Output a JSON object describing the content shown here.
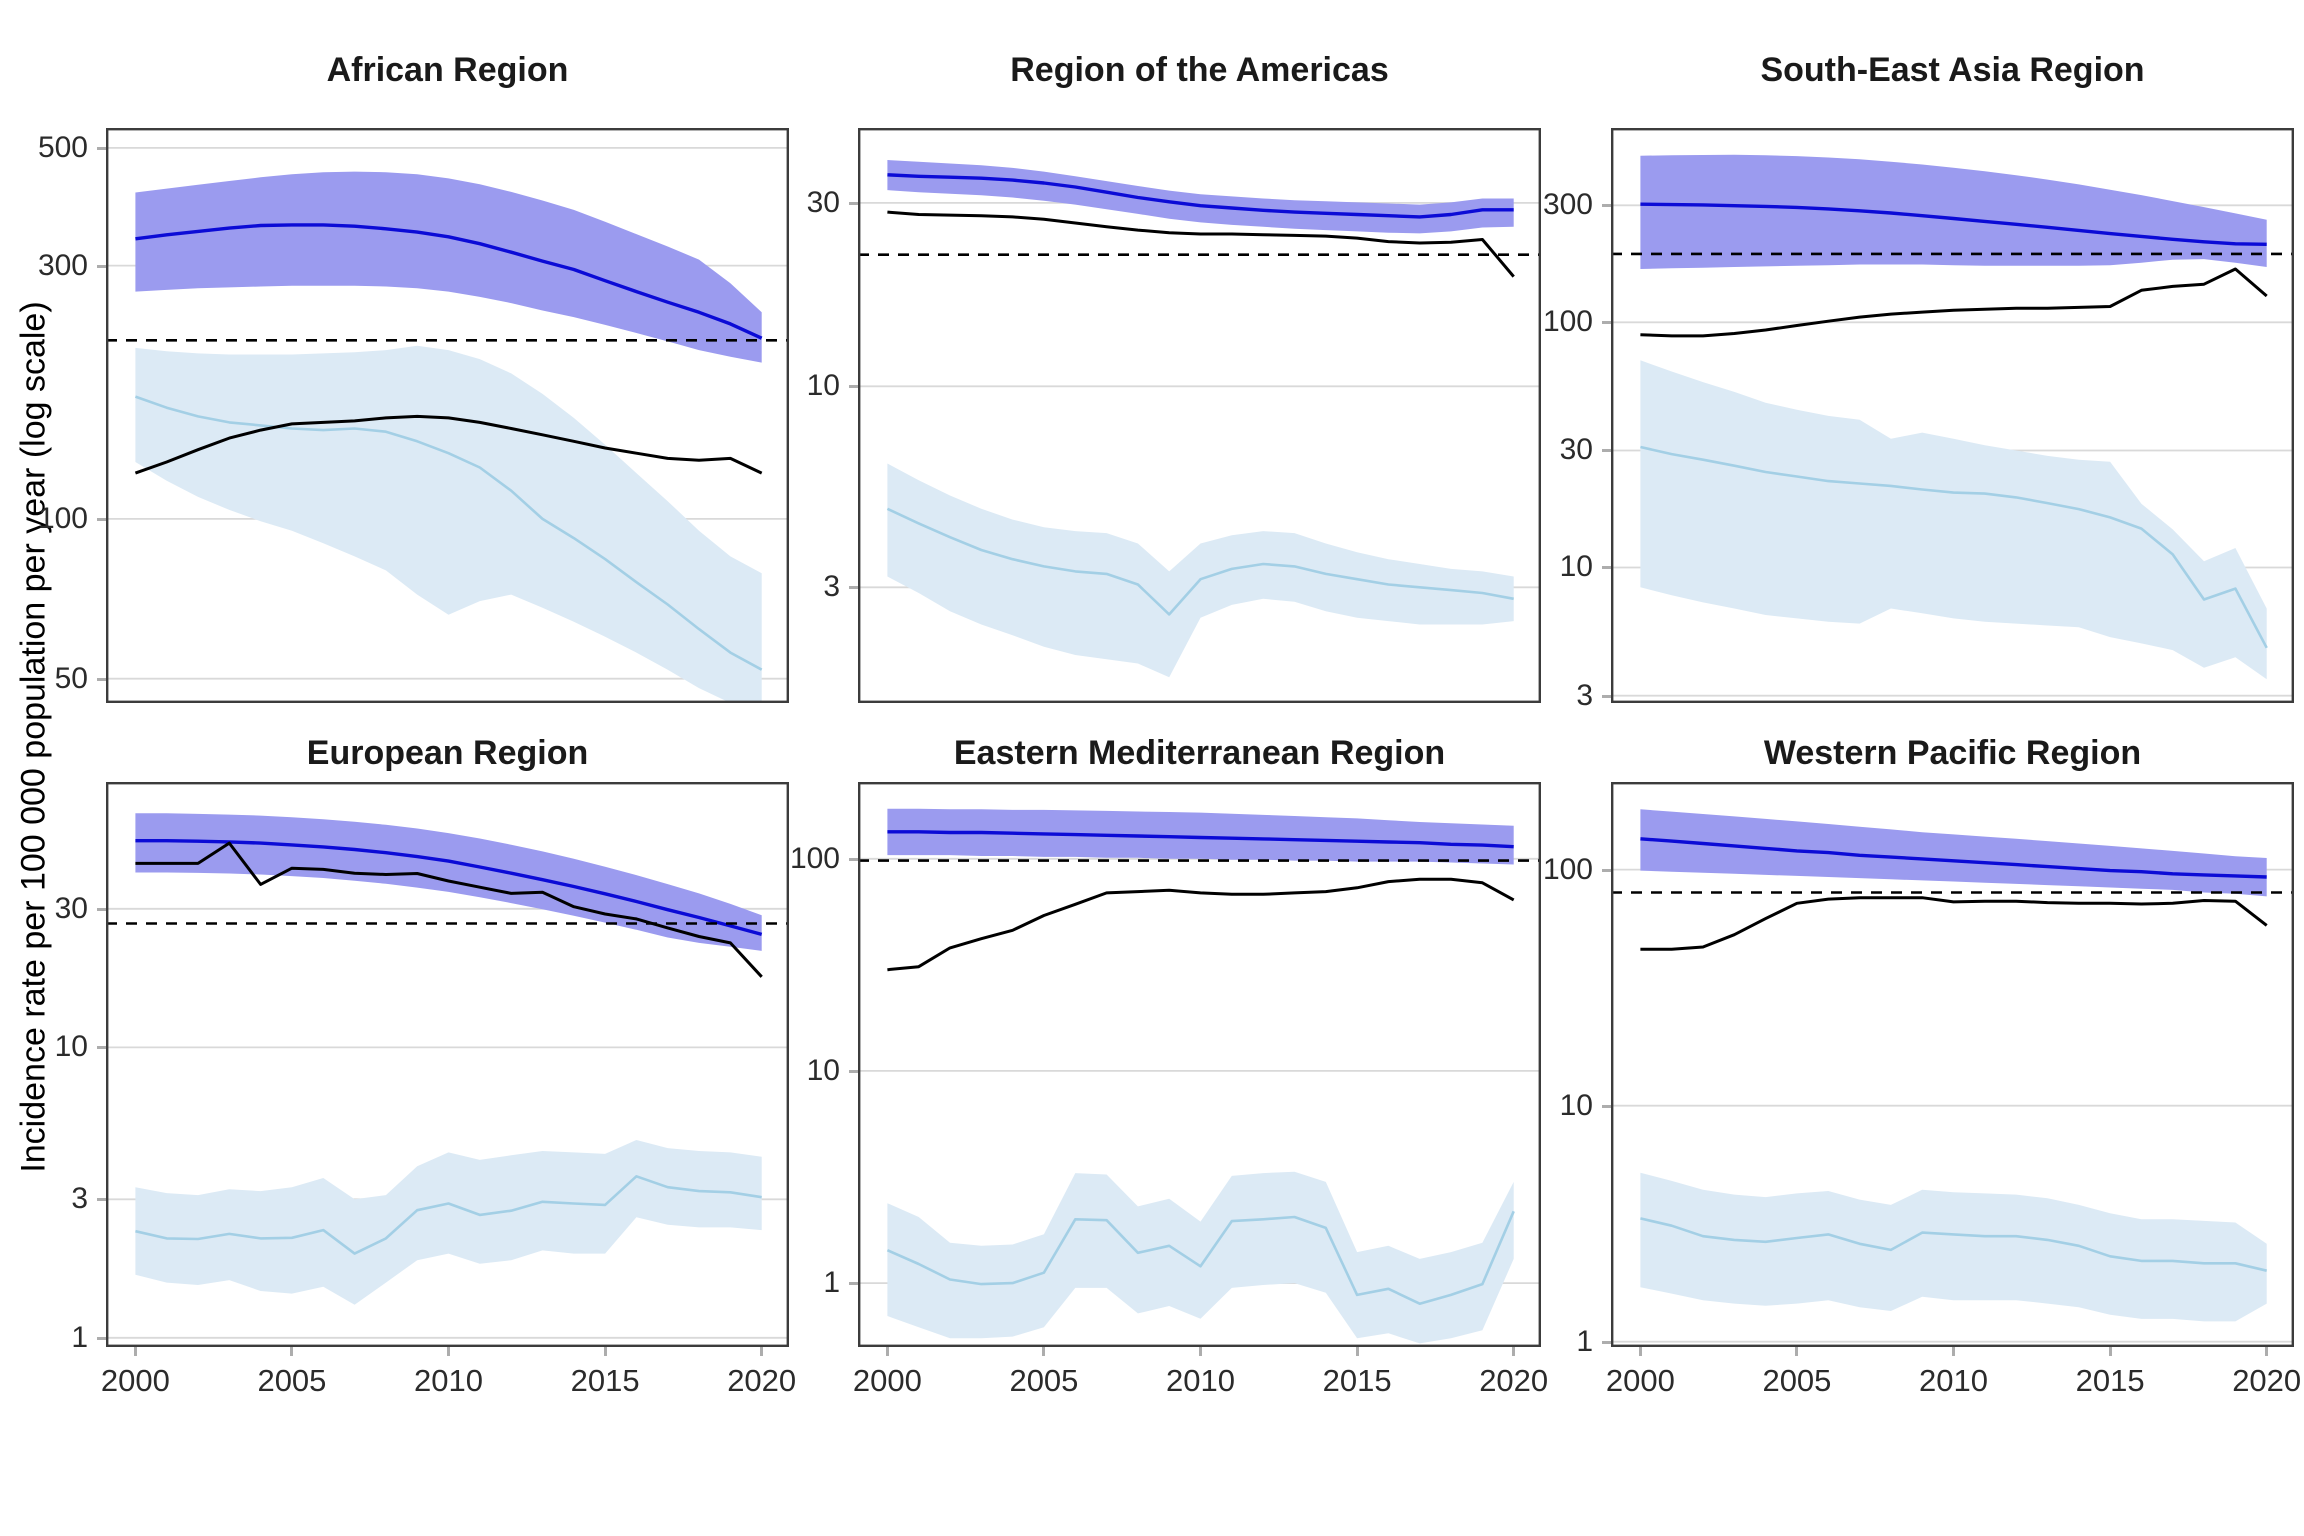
{
  "figure": {
    "y_axis_title": "Incidence rate per 100 000 population per year (log scale)",
    "x_tick_labels": [
      "2000",
      "2005",
      "2010",
      "2015",
      "2020"
    ],
    "years": [
      2000,
      2001,
      2002,
      2003,
      2004,
      2005,
      2006,
      2007,
      2008,
      2009,
      2010,
      2011,
      2012,
      2013,
      2014,
      2015,
      2016,
      2017,
      2018,
      2019,
      2020
    ],
    "colors": {
      "estimated_line": "#0b0bd6",
      "estimated_ribbon": "#9b9bef",
      "notifications_line": "#000000",
      "secondary_line": "#a3cfe5",
      "secondary_ribbon": "#dceaf5",
      "dashed_reference": "#000000",
      "gridline": "#d9d9d9",
      "panel_border": "#3c3c3c",
      "tick": "#adadad",
      "label": "#2b2b2b"
    }
  },
  "chart_data": [
    {
      "type": "line",
      "title": "African Region",
      "y_ticks": [
        500,
        300,
        100,
        50
      ],
      "y_domain": [
        45,
        545
      ],
      "dashed_line": 217,
      "series": {
        "estimated_incidence": [
          337,
          343,
          348,
          353,
          357,
          358,
          358,
          356,
          352,
          347,
          340,
          330,
          318,
          306,
          295,
          281,
          268,
          256,
          245,
          233,
          219
        ],
        "estimated_upper": [
          412,
          419,
          426,
          433,
          440,
          446,
          450,
          451,
          450,
          446,
          438,
          427,
          413,
          398,
          382,
          363,
          344,
          326,
          308,
          278,
          245
        ],
        "estimated_lower": [
          268,
          270,
          272,
          273,
          274,
          275,
          275,
          275,
          274,
          272,
          268,
          262,
          255,
          247,
          240,
          232,
          224,
          216,
          208,
          202,
          197
        ],
        "notifications": [
          122,
          128,
          135,
          142,
          147,
          151,
          152,
          153,
          155,
          156,
          155,
          152,
          148,
          144,
          140,
          136,
          133,
          130,
          129,
          130,
          122
        ],
        "secondary": [
          170,
          162,
          156,
          152,
          150,
          148,
          147,
          148,
          146,
          140,
          133,
          125,
          113,
          100,
          92,
          84,
          76,
          69,
          62,
          56,
          52
        ],
        "secondary_upper": [
          210,
          207,
          205,
          204,
          204,
          204,
          205,
          206,
          208,
          212,
          208,
          200,
          188,
          172,
          155,
          138,
          122,
          108,
          95,
          85,
          79
        ],
        "secondary_lower": [
          128,
          118,
          110,
          104,
          99,
          95,
          90,
          85,
          80,
          72,
          66,
          70,
          72,
          68,
          64,
          60,
          56,
          52,
          48,
          45,
          43
        ]
      }
    },
    {
      "type": "line",
      "title": "Region of the Americas",
      "y_ticks": [
        30,
        10,
        3
      ],
      "y_domain": [
        1.5,
        47
      ],
      "dashed_line": 22,
      "series": {
        "estimated_incidence": [
          35.5,
          35.2,
          35,
          34.8,
          34.4,
          33.8,
          33,
          32,
          31,
          30.2,
          29.5,
          29.1,
          28.7,
          28.4,
          28.2,
          28,
          27.8,
          27.6,
          28,
          28.8,
          28.8
        ],
        "estimated_upper": [
          38.8,
          38.4,
          38,
          37.6,
          37,
          36.2,
          35.2,
          34.2,
          33.2,
          32.3,
          31.6,
          31.2,
          30.8,
          30.5,
          30.3,
          30.1,
          29.9,
          29.7,
          30.1,
          30.8,
          30.8
        ],
        "estimated_lower": [
          32.4,
          32,
          31.7,
          31.4,
          31,
          30.4,
          29.7,
          28.9,
          28.1,
          27.3,
          26.7,
          26.3,
          26,
          25.7,
          25.5,
          25.3,
          25.1,
          25,
          25.3,
          25.9,
          26
        ],
        "notifications": [
          28.4,
          28,
          27.9,
          27.8,
          27.6,
          27.2,
          26.6,
          26,
          25.5,
          25.1,
          24.9,
          24.9,
          24.8,
          24.7,
          24.6,
          24.3,
          23.8,
          23.6,
          23.7,
          24.1,
          19.3
        ],
        "secondary": [
          4.8,
          4.4,
          4.05,
          3.75,
          3.55,
          3.4,
          3.3,
          3.25,
          3.05,
          2.55,
          3.15,
          3.35,
          3.45,
          3.4,
          3.25,
          3.15,
          3.05,
          3.0,
          2.95,
          2.9,
          2.8
        ],
        "secondary_upper": [
          6.3,
          5.7,
          5.2,
          4.8,
          4.5,
          4.3,
          4.2,
          4.15,
          3.9,
          3.3,
          3.9,
          4.1,
          4.2,
          4.15,
          3.9,
          3.7,
          3.55,
          3.45,
          3.35,
          3.3,
          3.2
        ],
        "secondary_lower": [
          3.2,
          2.9,
          2.6,
          2.4,
          2.25,
          2.1,
          2.0,
          1.95,
          1.9,
          1.75,
          2.5,
          2.7,
          2.8,
          2.75,
          2.6,
          2.5,
          2.45,
          2.4,
          2.4,
          2.4,
          2.45
        ]
      }
    },
    {
      "type": "line",
      "title": "South-East Asia Region",
      "y_ticks": [
        300,
        100,
        30,
        10,
        3
      ],
      "y_domain": [
        2.8,
        620
      ],
      "dashed_line": 190,
      "series": {
        "estimated_incidence": [
          303,
          302,
          301,
          299,
          297,
          294,
          290,
          285,
          279,
          272,
          265,
          258,
          251,
          244,
          237,
          230,
          224,
          218,
          213,
          209,
          208
        ],
        "estimated_upper": [
          478,
          480,
          481,
          482,
          480,
          476,
          470,
          462,
          452,
          440,
          427,
          413,
          398,
          382,
          365,
          347,
          330,
          312,
          295,
          278,
          262
        ],
        "estimated_lower": [
          165,
          166,
          167,
          168,
          169,
          170,
          171,
          172,
          172,
          172,
          171,
          170,
          170,
          170,
          170,
          171,
          175,
          180,
          181,
          175,
          168
        ],
        "notifications": [
          89,
          88,
          88,
          90,
          93,
          97,
          101,
          105,
          108,
          110,
          112,
          113,
          114,
          114,
          115,
          116,
          135,
          140,
          143,
          165,
          128
        ],
        "secondary": [
          31,
          29,
          27.5,
          26,
          24.5,
          23.5,
          22.5,
          22,
          21.5,
          20.8,
          20.2,
          20,
          19.3,
          18.3,
          17.3,
          16,
          14.4,
          11.3,
          7.4,
          8.2,
          4.7
        ],
        "secondary_upper": [
          70,
          63,
          57,
          52,
          47,
          44,
          41.5,
          40,
          33.5,
          35.5,
          33.5,
          31.5,
          30,
          28.5,
          27.5,
          27,
          18.2,
          14.3,
          10.6,
          12,
          6.8
        ],
        "secondary_lower": [
          8.3,
          7.7,
          7.2,
          6.8,
          6.4,
          6.2,
          6.0,
          5.9,
          6.8,
          6.5,
          6.2,
          6.0,
          5.9,
          5.8,
          5.7,
          5.2,
          4.9,
          4.6,
          3.9,
          4.3,
          3.5
        ]
      }
    },
    {
      "type": "line",
      "title": "European Region",
      "y_ticks": [
        30,
        10,
        3,
        1
      ],
      "y_domain": [
        0.93,
        82
      ],
      "dashed_line": 26.7,
      "series": {
        "estimated_incidence": [
          51.5,
          51.5,
          51.3,
          51,
          50.5,
          49.8,
          49,
          48,
          46.8,
          45.4,
          43.8,
          41.8,
          39.8,
          37.8,
          35.8,
          33.8,
          31.8,
          29.8,
          28,
          26.2,
          24.5
        ],
        "estimated_upper": [
          64,
          64,
          63.7,
          63.3,
          62.8,
          62,
          61,
          59.8,
          58.4,
          56.7,
          54.7,
          52.4,
          49.9,
          47.3,
          44.6,
          41.9,
          39.2,
          36.5,
          33.9,
          31.2,
          28.5
        ],
        "estimated_lower": [
          40,
          40,
          39.9,
          39.7,
          39.4,
          38.9,
          38.3,
          37.5,
          36.6,
          35.5,
          34.3,
          32.9,
          31.4,
          29.9,
          28.4,
          26.9,
          25.4,
          23.9,
          22.9,
          22.2,
          21.5
        ],
        "notifications": [
          43,
          43,
          43,
          50.5,
          36.4,
          41.4,
          41,
          39.8,
          39.4,
          39.7,
          37.4,
          35.6,
          33.9,
          34.2,
          30.5,
          28.8,
          27.7,
          25.8,
          24.1,
          22.9,
          17.5
        ],
        "secondary": [
          2.33,
          2.2,
          2.19,
          2.28,
          2.2,
          2.21,
          2.35,
          1.95,
          2.2,
          2.75,
          2.9,
          2.65,
          2.74,
          2.94,
          2.9,
          2.87,
          3.6,
          3.3,
          3.2,
          3.17,
          3.05
        ],
        "secondary_upper": [
          3.3,
          3.15,
          3.1,
          3.25,
          3.2,
          3.3,
          3.55,
          3.0,
          3.1,
          3.9,
          4.35,
          4.1,
          4.25,
          4.4,
          4.35,
          4.3,
          4.8,
          4.5,
          4.4,
          4.35,
          4.2
        ],
        "secondary_lower": [
          1.65,
          1.55,
          1.52,
          1.58,
          1.45,
          1.42,
          1.5,
          1.3,
          1.55,
          1.85,
          1.95,
          1.8,
          1.85,
          2.0,
          1.95,
          1.95,
          2.6,
          2.45,
          2.4,
          2.4,
          2.35
        ]
      }
    },
    {
      "type": "line",
      "title": "Eastern Mediterranean Region",
      "y_ticks": [
        100,
        10,
        1
      ],
      "y_domain": [
        0.5,
        230
      ],
      "dashed_line": 98,
      "series": {
        "estimated_incidence": [
          134,
          134,
          133,
          133,
          132,
          131,
          130,
          129,
          128,
          127,
          126,
          125,
          124,
          123,
          122,
          121,
          120,
          119,
          117,
          116,
          114
        ],
        "estimated_upper": [
          172,
          172,
          171,
          171,
          170,
          170,
          169,
          168,
          167,
          166,
          165,
          163,
          161,
          159,
          157,
          155,
          152,
          149,
          147,
          145,
          143
        ],
        "estimated_lower": [
          104,
          104,
          104,
          103,
          103,
          102,
          102,
          101,
          101,
          100,
          100,
          99,
          99,
          98,
          98,
          97,
          97,
          97,
          96,
          95,
          94
        ],
        "notifications": [
          30,
          31,
          38,
          42,
          46,
          54,
          61,
          69,
          70,
          71,
          69,
          68,
          68,
          69,
          70,
          73,
          78,
          80,
          80,
          77,
          64
        ],
        "secondary": [
          1.43,
          1.23,
          1.04,
          0.99,
          1.0,
          1.12,
          2.0,
          1.98,
          1.39,
          1.5,
          1.2,
          1.96,
          2.0,
          2.05,
          1.82,
          0.88,
          0.94,
          0.8,
          0.88,
          0.99,
          2.18
        ],
        "secondary_upper": [
          2.38,
          2.05,
          1.55,
          1.5,
          1.52,
          1.7,
          3.3,
          3.25,
          2.3,
          2.5,
          1.95,
          3.2,
          3.3,
          3.35,
          3.0,
          1.4,
          1.5,
          1.3,
          1.4,
          1.55,
          3.0
        ],
        "secondary_lower": [
          0.7,
          0.62,
          0.55,
          0.55,
          0.56,
          0.62,
          0.95,
          0.95,
          0.72,
          0.78,
          0.68,
          0.95,
          0.98,
          1.0,
          0.9,
          0.55,
          0.58,
          0.52,
          0.55,
          0.6,
          1.3
        ]
      }
    },
    {
      "type": "line",
      "title": "Western Pacific Region",
      "y_ticks": [
        100,
        10,
        1
      ],
      "y_domain": [
        0.95,
        235
      ],
      "dashed_line": 80,
      "series": {
        "estimated_incidence": [
          135,
          132,
          129,
          126,
          123,
          120,
          118,
          115,
          113,
          111,
          109,
          107,
          105,
          103,
          101,
          99,
          98,
          96,
          95,
          94,
          93
        ],
        "estimated_upper": [
          180,
          176,
          172,
          168,
          164,
          160,
          156,
          152,
          148,
          144,
          141,
          138,
          135,
          132,
          129,
          126,
          123,
          120,
          117,
          114,
          112
        ],
        "estimated_lower": [
          99,
          98,
          97,
          96,
          95,
          94,
          93,
          92,
          91,
          90,
          89,
          88,
          87,
          86,
          85,
          84,
          83,
          82,
          80,
          79,
          77
        ],
        "notifications": [
          46,
          46,
          47,
          53,
          62,
          72,
          75,
          76,
          76,
          76,
          73,
          73.5,
          73.5,
          72.5,
          72,
          72,
          71.5,
          72,
          74,
          73.5,
          58
        ],
        "secondary": [
          3.33,
          3.1,
          2.8,
          2.7,
          2.65,
          2.75,
          2.85,
          2.6,
          2.45,
          2.9,
          2.85,
          2.8,
          2.8,
          2.7,
          2.55,
          2.3,
          2.2,
          2.2,
          2.15,
          2.15,
          2.0
        ],
        "secondary_upper": [
          5.2,
          4.8,
          4.4,
          4.2,
          4.1,
          4.25,
          4.35,
          4.0,
          3.8,
          4.4,
          4.3,
          4.25,
          4.2,
          4.05,
          3.8,
          3.5,
          3.3,
          3.3,
          3.25,
          3.2,
          2.6
        ],
        "secondary_lower": [
          1.7,
          1.6,
          1.5,
          1.45,
          1.42,
          1.45,
          1.5,
          1.4,
          1.35,
          1.55,
          1.5,
          1.5,
          1.5,
          1.45,
          1.4,
          1.3,
          1.25,
          1.25,
          1.22,
          1.22,
          1.45
        ]
      }
    }
  ]
}
